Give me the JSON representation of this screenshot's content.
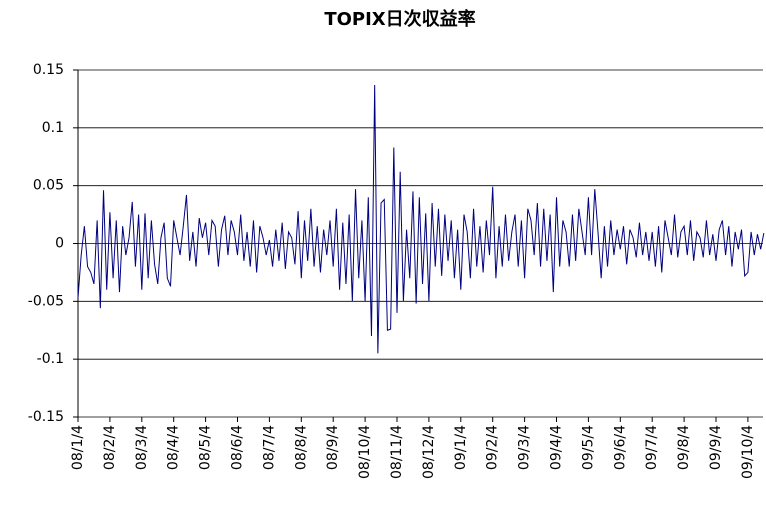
{
  "chart_data": {
    "type": "line",
    "title": "TOPIX日次収益率",
    "categories": [
      "08/1/4",
      null,
      null,
      null,
      null,
      null,
      null,
      null,
      null,
      null,
      "08/2/4",
      null,
      null,
      null,
      null,
      null,
      null,
      null,
      null,
      null,
      "08/3/4",
      null,
      null,
      null,
      null,
      null,
      null,
      null,
      null,
      null,
      "08/4/4",
      null,
      null,
      null,
      null,
      null,
      null,
      null,
      null,
      null,
      "08/5/4",
      null,
      null,
      null,
      null,
      null,
      null,
      null,
      null,
      null,
      "08/6/4",
      null,
      null,
      null,
      null,
      null,
      null,
      null,
      null,
      null,
      "08/7/4",
      null,
      null,
      null,
      null,
      null,
      null,
      null,
      null,
      null,
      "08/8/4",
      null,
      null,
      null,
      null,
      null,
      null,
      null,
      null,
      null,
      "08/9/4",
      null,
      null,
      null,
      null,
      null,
      null,
      null,
      null,
      null,
      "08/10/4",
      null,
      null,
      null,
      null,
      null,
      null,
      null,
      null,
      null,
      "08/11/4",
      null,
      null,
      null,
      null,
      null,
      null,
      null,
      null,
      null,
      "08/12/4",
      null,
      null,
      null,
      null,
      null,
      null,
      null,
      null,
      null,
      "09/1/4",
      null,
      null,
      null,
      null,
      null,
      null,
      null,
      null,
      null,
      "09/2/4",
      null,
      null,
      null,
      null,
      null,
      null,
      null,
      null,
      null,
      "09/3/4",
      null,
      null,
      null,
      null,
      null,
      null,
      null,
      null,
      null,
      "09/4/4",
      null,
      null,
      null,
      null,
      null,
      null,
      null,
      null,
      null,
      "09/5/4",
      null,
      null,
      null,
      null,
      null,
      null,
      null,
      null,
      null,
      "09/6/4",
      null,
      null,
      null,
      null,
      null,
      null,
      null,
      null,
      null,
      "09/7/4",
      null,
      null,
      null,
      null,
      null,
      null,
      null,
      null,
      null,
      "09/8/4",
      null,
      null,
      null,
      null,
      null,
      null,
      null,
      null,
      null,
      "09/9/4",
      null,
      null,
      null,
      null,
      null,
      null,
      null,
      null,
      null,
      "09/10/4",
      null,
      null,
      null,
      null,
      null
    ],
    "series": [
      {
        "color": "#000080",
        "values": [
          -0.047,
          -0.01,
          0.015,
          -0.02,
          -0.025,
          -0.035,
          0.02,
          -0.056,
          0.046,
          -0.04,
          0.027,
          -0.03,
          0.02,
          -0.042,
          0.015,
          -0.01,
          0.005,
          0.036,
          -0.02,
          0.025,
          -0.04,
          0.026,
          -0.03,
          0.02,
          -0.018,
          -0.035,
          0.005,
          0.018,
          -0.03,
          -0.037,
          0.02,
          0.005,
          -0.01,
          0.015,
          0.042,
          -0.015,
          0.01,
          -0.02,
          0.022,
          0.005,
          0.018,
          -0.01,
          0.02,
          0.015,
          -0.02,
          0.012,
          0.024,
          -0.01,
          0.02,
          0.01,
          -0.01,
          0.025,
          -0.015,
          0.01,
          -0.02,
          0.02,
          -0.025,
          0.015,
          0.005,
          -0.01,
          0.003,
          -0.02,
          0.012,
          -0.015,
          0.018,
          -0.022,
          0.01,
          0.005,
          -0.018,
          0.028,
          -0.03,
          0.02,
          -0.015,
          0.03,
          -0.02,
          0.015,
          -0.025,
          0.012,
          -0.01,
          0.02,
          -0.02,
          0.03,
          -0.04,
          0.018,
          -0.035,
          0.025,
          -0.05,
          0.047,
          -0.03,
          0.02,
          -0.05,
          0.04,
          -0.08,
          0.137,
          -0.095,
          0.035,
          0.038,
          -0.075,
          -0.074,
          0.083,
          -0.06,
          0.062,
          -0.05,
          0.012,
          -0.03,
          0.045,
          -0.052,
          0.04,
          -0.035,
          0.026,
          -0.05,
          0.035,
          -0.02,
          0.03,
          -0.028,
          0.025,
          -0.015,
          0.02,
          -0.03,
          0.012,
          -0.04,
          0.025,
          0.01,
          -0.03,
          0.03,
          -0.02,
          0.015,
          -0.025,
          0.02,
          -0.01,
          0.049,
          -0.03,
          0.015,
          -0.02,
          0.025,
          -0.015,
          0.01,
          0.025,
          -0.02,
          0.02,
          -0.03,
          0.03,
          0.02,
          -0.01,
          0.035,
          -0.02,
          0.03,
          -0.015,
          0.025,
          -0.042,
          0.04,
          -0.02,
          0.02,
          0.01,
          -0.02,
          0.025,
          -0.015,
          0.03,
          0.01,
          -0.01,
          0.04,
          -0.01,
          0.047,
          0.01,
          -0.03,
          0.015,
          -0.02,
          0.02,
          -0.01,
          0.012,
          -0.005,
          0.015,
          -0.018,
          0.012,
          0.005,
          -0.012,
          0.018,
          -0.01,
          0.01,
          -0.015,
          0.01,
          -0.02,
          0.015,
          -0.025,
          0.02,
          0.005,
          -0.01,
          0.025,
          -0.012,
          0.01,
          0.015,
          -0.01,
          0.02,
          -0.015,
          0.01,
          0.005,
          -0.012,
          0.02,
          -0.01,
          0.008,
          -0.015,
          0.012,
          0.02,
          -0.01,
          0.015,
          -0.02,
          0.01,
          -0.005,
          0.012,
          -0.028,
          -0.025,
          0.01,
          -0.01,
          0.008,
          -0.005,
          0.009
        ]
      }
    ],
    "ylim": [
      -0.15,
      0.15
    ],
    "yticks": [
      0.15,
      0.1,
      0.05,
      0,
      -0.05,
      -0.1,
      -0.15
    ],
    "grid": true
  }
}
